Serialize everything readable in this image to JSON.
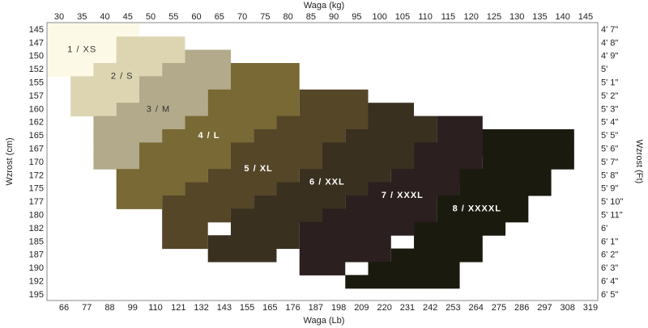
{
  "chart_data": {
    "type": "size-chart",
    "top_axis_title": "Waga  (kg)",
    "bottom_axis_title": "Waga  (Lb)",
    "left_axis_title": "Wzrost  (cm)",
    "right_axis_title": "Wzrost  (Ft)",
    "kg": [
      30,
      35,
      40,
      45,
      50,
      55,
      60,
      65,
      70,
      75,
      80,
      85,
      90,
      95,
      100,
      105,
      110,
      115,
      120,
      125,
      130,
      135,
      140,
      145
    ],
    "lb": [
      66,
      77,
      88,
      99,
      110,
      121,
      132,
      143,
      155,
      165,
      176,
      187,
      198,
      209,
      220,
      231,
      242,
      253,
      264,
      275,
      286,
      297,
      308,
      319
    ],
    "cm": [
      145,
      147,
      150,
      152,
      155,
      157,
      160,
      162,
      165,
      167,
      170,
      172,
      175,
      177,
      180,
      182,
      185,
      187,
      190,
      192,
      195
    ],
    "ft": [
      "4'  7\"",
      "4'  8\"",
      "4'  9\"",
      "5'",
      "5'  1\"",
      "5'  2\"",
      "5'  3\"",
      "5'  4\"",
      "5'  5\"",
      "5'  6\"",
      "5'  7\"",
      "5'  8\"",
      "5'  9\"",
      "5'  10\"",
      "5'  11\"",
      "6'",
      "6'  1\"",
      "6'  2\"",
      "6'  3\"",
      "6'  4\"",
      "6'  5\""
    ],
    "sizes": [
      {
        "name": "1  /  XS",
        "color": "#fcf9e6",
        "rows": [
          [
            145,
            30,
            45
          ],
          [
            147,
            30,
            40
          ],
          [
            150,
            30,
            40
          ],
          [
            152,
            30,
            35
          ]
        ]
      },
      {
        "name": "2  /  S",
        "color": "#ddd5b2",
        "rows": [
          [
            147,
            45,
            55
          ],
          [
            150,
            45,
            55
          ],
          [
            152,
            40,
            50
          ],
          [
            155,
            35,
            45
          ],
          [
            157,
            35,
            45
          ],
          [
            160,
            35,
            40
          ]
        ]
      },
      {
        "name": "3  /  M",
        "color": "#b3aa8b",
        "rows": [
          [
            150,
            60,
            65
          ],
          [
            152,
            55,
            65
          ],
          [
            155,
            50,
            65
          ],
          [
            157,
            50,
            60
          ],
          [
            160,
            45,
            60
          ],
          [
            162,
            40,
            55
          ],
          [
            165,
            40,
            50
          ],
          [
            167,
            40,
            45
          ],
          [
            170,
            40,
            45
          ]
        ]
      },
      {
        "name": "4  /  L",
        "color": "#786935",
        "rows": [
          [
            152,
            70,
            80
          ],
          [
            155,
            70,
            80
          ],
          [
            157,
            65,
            80
          ],
          [
            160,
            65,
            80
          ],
          [
            162,
            60,
            75
          ],
          [
            165,
            55,
            70
          ],
          [
            167,
            50,
            65
          ],
          [
            170,
            50,
            65
          ],
          [
            172,
            45,
            60
          ],
          [
            175,
            45,
            55
          ],
          [
            177,
            45,
            50
          ]
        ]
      },
      {
        "name": "5  /  XL",
        "color": "#554628",
        "rows": [
          [
            157,
            85,
            95
          ],
          [
            160,
            85,
            95
          ],
          [
            162,
            80,
            95
          ],
          [
            165,
            75,
            90
          ],
          [
            167,
            70,
            85
          ],
          [
            170,
            70,
            85
          ],
          [
            172,
            65,
            80
          ],
          [
            175,
            60,
            75
          ],
          [
            177,
            55,
            70
          ],
          [
            180,
            55,
            65
          ],
          [
            182,
            55,
            60
          ],
          [
            185,
            55,
            60
          ]
        ]
      },
      {
        "name": "6  /  XXL",
        "color": "#3a3020",
        "rows": [
          [
            160,
            100,
            105
          ],
          [
            162,
            100,
            110
          ],
          [
            165,
            95,
            110
          ],
          [
            167,
            90,
            105
          ],
          [
            170,
            90,
            105
          ],
          [
            172,
            85,
            100
          ],
          [
            175,
            80,
            95
          ],
          [
            177,
            75,
            90
          ],
          [
            180,
            70,
            85
          ],
          [
            182,
            70,
            80
          ],
          [
            185,
            65,
            80
          ],
          [
            187,
            65,
            75
          ]
        ]
      },
      {
        "name": "7  /  XXXL",
        "color": "#2b1f1f",
        "rows": [
          [
            162,
            115,
            120
          ],
          [
            165,
            115,
            125
          ],
          [
            167,
            110,
            125
          ],
          [
            170,
            110,
            120
          ],
          [
            172,
            105,
            120
          ],
          [
            175,
            100,
            115
          ],
          [
            177,
            95,
            110
          ],
          [
            180,
            90,
            110
          ],
          [
            182,
            85,
            105
          ],
          [
            185,
            85,
            100
          ],
          [
            187,
            85,
            100
          ],
          [
            190,
            85,
            90
          ]
        ]
      },
      {
        "name": "8  /  XXXXL",
        "color": "#1a1a0f",
        "rows": [
          [
            165,
            125,
            140
          ],
          [
            167,
            125,
            140
          ],
          [
            170,
            125,
            140
          ],
          [
            172,
            120,
            135
          ],
          [
            175,
            120,
            135
          ],
          [
            177,
            115,
            130
          ],
          [
            180,
            115,
            130
          ],
          [
            182,
            110,
            125
          ],
          [
            185,
            110,
            120
          ],
          [
            187,
            105,
            120
          ],
          [
            190,
            100,
            115
          ],
          [
            192,
            95,
            115
          ]
        ]
      }
    ]
  }
}
